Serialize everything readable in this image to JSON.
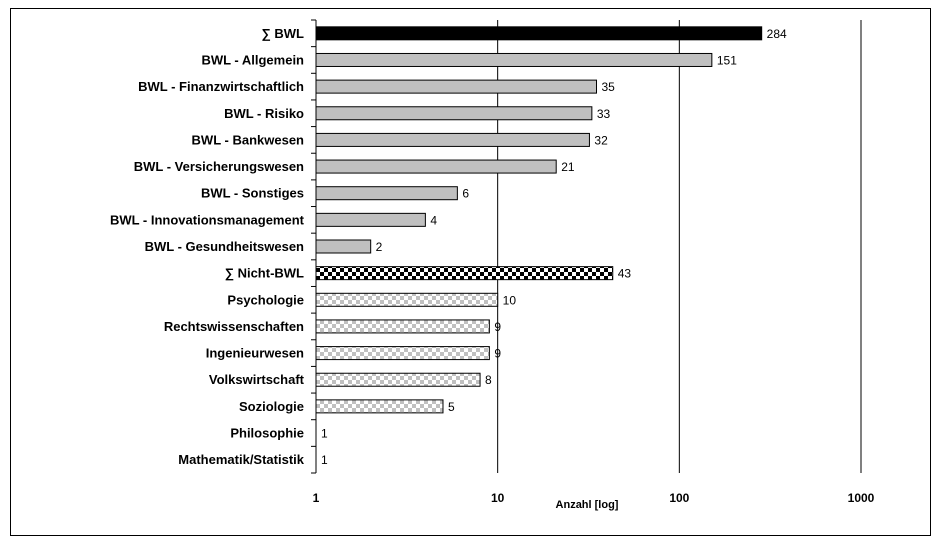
{
  "chart_data": {
    "type": "bar",
    "orientation": "horizontal",
    "xscale": "log",
    "xlim": [
      1,
      1000
    ],
    "xticks": [
      "1",
      "10",
      "100",
      "1000"
    ],
    "xlabel": "Anzahl [log]",
    "ylabel": "",
    "title": "",
    "grid": "vertical major gridlines",
    "legend": "none",
    "categories": [
      "∑ BWL",
      "BWL - Allgemein",
      "BWL - Finanzwirtschaftlich",
      "BWL - Risiko",
      "BWL - Bankwesen",
      "BWL - Versicherungswesen",
      "BWL - Sonstiges",
      "BWL - Innovationsmanagement",
      "BWL - Gesundheitswesen",
      "∑ Nicht-BWL",
      "Psychologie",
      "Rechtswissenschaften",
      "Ingenieurwesen",
      "Volkswirtschaft",
      "Soziologie",
      "Philosophie",
      "Mathematik/Statistik"
    ],
    "values": [
      284,
      151,
      35,
      33,
      32,
      21,
      6,
      4,
      2,
      43,
      10,
      9,
      9,
      8,
      5,
      1,
      1
    ],
    "value_labels": [
      "284",
      "151",
      "35",
      "33",
      "32",
      "21",
      "6",
      "4",
      "2",
      "43",
      "10",
      "9",
      "9",
      "8",
      "5",
      "1",
      "1"
    ],
    "styles": [
      "solid-black",
      "gray",
      "gray",
      "gray",
      "gray",
      "gray",
      "gray",
      "gray",
      "gray",
      "checker-black",
      "checker-gray",
      "checker-gray",
      "checker-gray",
      "checker-gray",
      "checker-gray",
      "checker-gray",
      "checker-gray"
    ],
    "colors": {
      "solid": "#000000",
      "gray": "#c0c0c0",
      "checker_dark": "#000000",
      "checker_light": "#c0c0c0",
      "background": "#ffffff"
    }
  }
}
